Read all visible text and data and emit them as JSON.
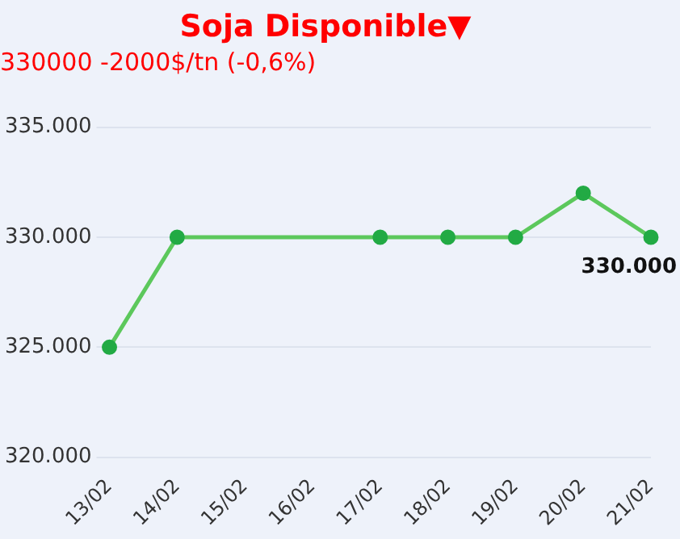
{
  "chart_data": {
    "type": "line",
    "title": "Soja Disponible▼",
    "subtitle": "330000 -2000$/tn (-0,6%)",
    "categories": [
      "13/02",
      "14/02",
      "15/02",
      "16/02",
      "17/02",
      "18/02",
      "19/02",
      "20/02",
      "21/02"
    ],
    "series": [
      {
        "color": "#5cc85c",
        "values": [
          325000,
          330000,
          null,
          null,
          330000,
          330000,
          330000,
          332000,
          330000
        ],
        "value_labels": [
          null,
          null,
          null,
          null,
          null,
          null,
          null,
          null,
          "330.000"
        ]
      }
    ],
    "ylim": [
      320000,
      335000
    ],
    "yticks": [
      {
        "value": 320000,
        "label": "320.000"
      },
      {
        "value": 325000,
        "label": "325.000"
      },
      {
        "value": 330000,
        "label": "330.000"
      },
      {
        "value": 335000,
        "label": "335.000"
      }
    ],
    "grid": "y",
    "legend": false,
    "marker": "circle",
    "line_style": "solid"
  }
}
